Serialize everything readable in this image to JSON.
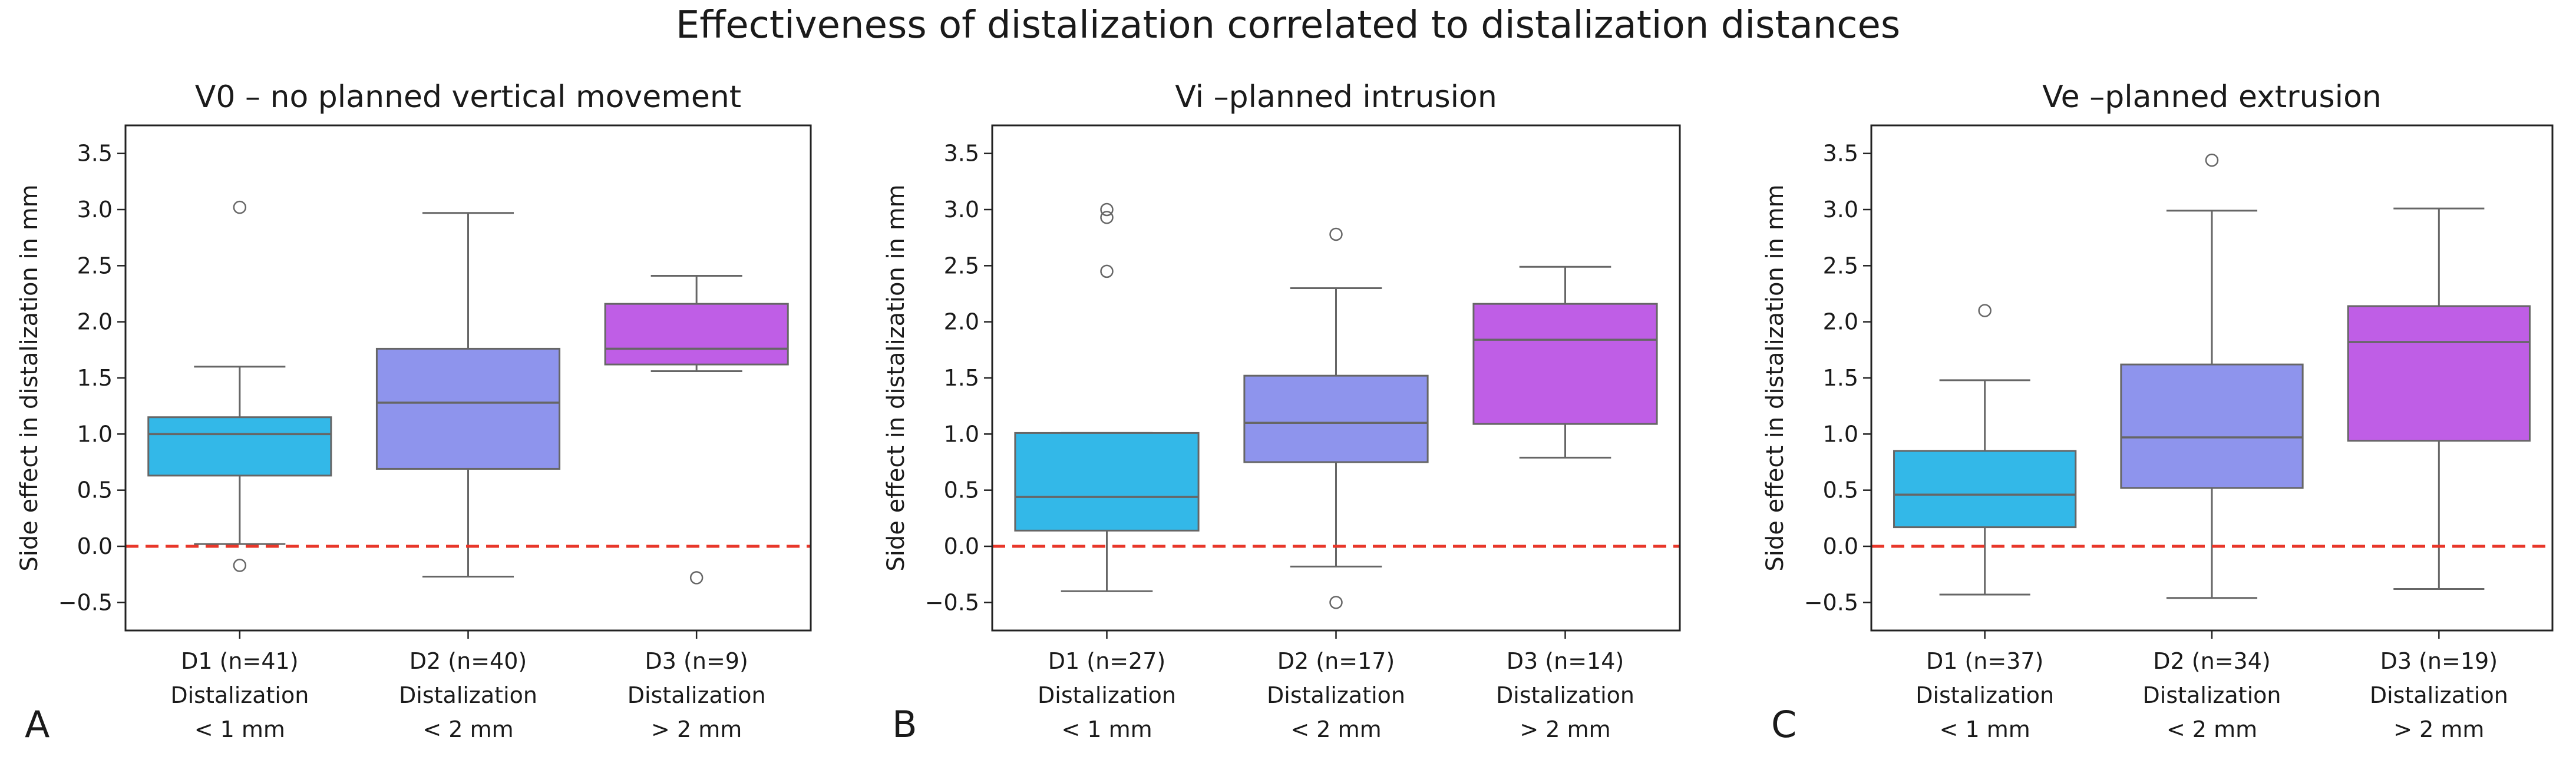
{
  "figure_title": "Effectiveness of distalization correlated to distalization distances",
  "colors": {
    "D1": "#33b8e8",
    "D2": "#8e94ed",
    "D3": "#bf5ee6",
    "reference": "#e8372a",
    "edge": "#666666"
  },
  "chart_data": [
    {
      "type": "box",
      "panel_letter": "A",
      "title": "V0 – no planned vertical movement",
      "ylabel": "Side effect in distalization in mm",
      "xlabel": "",
      "ylim": [
        -0.75,
        3.75
      ],
      "yticks": [
        "−0.5",
        "0.0",
        "0.5",
        "1.0",
        "1.5",
        "2.0",
        "2.5",
        "3.0",
        "3.5"
      ],
      "reference_line": 0.0,
      "categories": [
        {
          "lines": [
            "D1 (n=41)",
            "Distalization",
            "< 1 mm"
          ],
          "whisker_low": 0.02,
          "q1": 0.63,
          "median": 1.0,
          "q3": 1.15,
          "whisker_high": 1.6,
          "outliers": [
            3.02,
            -0.17
          ],
          "color_key": "D1"
        },
        {
          "lines": [
            "D2 (n=40)",
            "Distalization",
            "< 2 mm"
          ],
          "whisker_low": -0.27,
          "q1": 0.69,
          "median": 1.28,
          "q3": 1.76,
          "whisker_high": 2.97,
          "outliers": [],
          "color_key": "D2"
        },
        {
          "lines": [
            "D3 (n=9)",
            "Distalization",
            "> 2 mm"
          ],
          "whisker_low": 1.56,
          "q1": 1.62,
          "median": 1.76,
          "q3": 2.16,
          "whisker_high": 2.41,
          "outliers": [
            -0.28
          ],
          "color_key": "D3"
        }
      ]
    },
    {
      "type": "box",
      "panel_letter": "B",
      "title": "Vi –planned intrusion",
      "ylabel": "Side effect in distalization in mm",
      "xlabel": "",
      "ylim": [
        -0.75,
        3.75
      ],
      "yticks": [
        "−0.5",
        "0.0",
        "0.5",
        "1.0",
        "1.5",
        "2.0",
        "2.5",
        "3.0",
        "3.5"
      ],
      "reference_line": 0.0,
      "categories": [
        {
          "lines": [
            "D1 (n=27)",
            "Distalization",
            "< 1 mm"
          ],
          "whisker_low": -0.4,
          "q1": 0.14,
          "median": 0.44,
          "q3": 1.01,
          "whisker_high": 1.01,
          "outliers": [
            3.0,
            2.93,
            2.45
          ],
          "color_key": "D1"
        },
        {
          "lines": [
            "D2 (n=17)",
            "Distalization",
            "< 2 mm"
          ],
          "whisker_low": -0.18,
          "q1": 0.75,
          "median": 1.1,
          "q3": 1.52,
          "whisker_high": 2.3,
          "outliers": [
            2.78,
            -0.5
          ],
          "color_key": "D2"
        },
        {
          "lines": [
            "D3 (n=14)",
            "Distalization",
            "> 2 mm"
          ],
          "whisker_low": 0.79,
          "q1": 1.09,
          "median": 1.84,
          "q3": 2.16,
          "whisker_high": 2.49,
          "outliers": [],
          "color_key": "D3"
        }
      ]
    },
    {
      "type": "box",
      "panel_letter": "C",
      "title": "Ve –planned extrusion",
      "ylabel": "Side effect in distalization in mm",
      "xlabel": "",
      "ylim": [
        -0.75,
        3.75
      ],
      "yticks": [
        "−0.5",
        "0.0",
        "0.5",
        "1.0",
        "1.5",
        "2.0",
        "2.5",
        "3.0",
        "3.5"
      ],
      "reference_line": 0.0,
      "categories": [
        {
          "lines": [
            "D1 (n=37)",
            "Distalization",
            "< 1 mm"
          ],
          "whisker_low": -0.43,
          "q1": 0.17,
          "median": 0.46,
          "q3": 0.85,
          "whisker_high": 1.48,
          "outliers": [
            2.1
          ],
          "color_key": "D1"
        },
        {
          "lines": [
            "D2 (n=34)",
            "Distalization",
            "< 2 mm"
          ],
          "whisker_low": -0.46,
          "q1": 0.52,
          "median": 0.97,
          "q3": 1.62,
          "whisker_high": 2.99,
          "outliers": [
            3.44
          ],
          "color_key": "D2"
        },
        {
          "lines": [
            "D3 (n=19)",
            "Distalization",
            "> 2 mm"
          ],
          "whisker_low": -0.38,
          "q1": 0.94,
          "median": 1.82,
          "q3": 2.14,
          "whisker_high": 3.01,
          "outliers": [],
          "color_key": "D3"
        }
      ]
    }
  ]
}
